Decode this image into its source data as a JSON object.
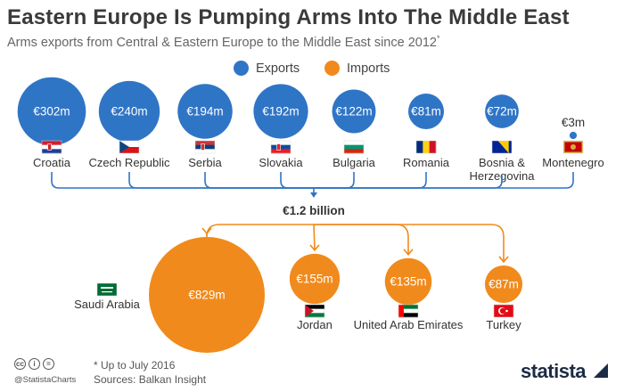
{
  "header": {
    "title": "Eastern Europe Is Pumping Arms Into The Middle East",
    "subtitle": "Arms exports from Central & Eastern Europe to the Middle East since 2012",
    "subtitle_mark": "*"
  },
  "legend": {
    "exports_label": "Exports",
    "imports_label": "Imports"
  },
  "colors": {
    "exports": "#2f75c6",
    "imports": "#f18a1c",
    "connector": "#2f75c6",
    "import_connector": "#f18a1c"
  },
  "chart_data": {
    "type": "bubble",
    "total_label": "€1.2 billion",
    "exports": [
      {
        "country": "Croatia",
        "value": 302,
        "label": "€302m",
        "flag": "croatia-flag"
      },
      {
        "country": "Czech Republic",
        "value": 240,
        "label": "€240m",
        "flag": "czech-flag"
      },
      {
        "country": "Serbia",
        "value": 194,
        "label": "€194m",
        "flag": "serbia-flag"
      },
      {
        "country": "Slovakia",
        "value": 192,
        "label": "€192m",
        "flag": "slovakia-flag"
      },
      {
        "country": "Bulgaria",
        "value": 122,
        "label": "€122m",
        "flag": "bulgaria-flag"
      },
      {
        "country": "Romania",
        "value": 81,
        "label": "€81m",
        "flag": "romania-flag"
      },
      {
        "country": "Bosnia & Herzegovina",
        "value": 72,
        "label": "€72m",
        "flag": "bosnia-flag"
      },
      {
        "country": "Montenegro",
        "value": 3,
        "label": "€3m",
        "flag": "montenegro-flag"
      }
    ],
    "imports": [
      {
        "country": "Saudi Arabia",
        "value": 829,
        "label": "€829m",
        "flag": "saudi-flag"
      },
      {
        "country": "Jordan",
        "value": 155,
        "label": "€155m",
        "flag": "jordan-flag"
      },
      {
        "country": "United Arab Emirates",
        "value": 135,
        "label": "€135m",
        "flag": "uae-flag"
      },
      {
        "country": "Turkey",
        "value": 87,
        "label": "€87m",
        "flag": "turkey-flag"
      }
    ]
  },
  "footer": {
    "note": "* Up to July 2016",
    "source": "Sources: Balkan Insight",
    "handle": "@StatistaCharts",
    "brand": "statista"
  }
}
